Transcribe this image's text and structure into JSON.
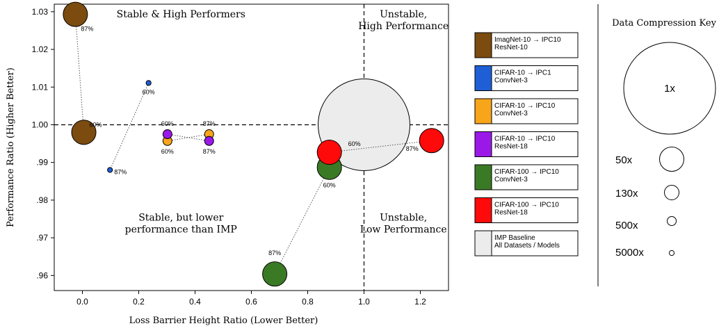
{
  "chart_data": {
    "type": "scatter",
    "xlabel": "Loss Barrier Height Ratio (Lower Better)",
    "ylabel": "Performance Ratio (Higher Better)",
    "xlim": [
      -0.1,
      1.3
    ],
    "ylim": [
      0.956,
      1.032
    ],
    "x_ticks": [
      0.0,
      0.2,
      0.4,
      0.6,
      0.8,
      1.0,
      1.2
    ],
    "x_tick_labels": [
      "0.0",
      "0.2",
      "0.4",
      "0.6",
      "0.8",
      "1.0",
      "1.2"
    ],
    "y_ticks": [
      0.96,
      0.97,
      0.98,
      0.99,
      1.0,
      1.01,
      1.02,
      1.03
    ],
    "y_tick_labels": [
      ".96",
      ".97",
      ".98",
      ".99",
      "1.00",
      "1.01",
      "1.02",
      "1.03"
    ],
    "reference_lines": {
      "x": 1.0,
      "y": 1.0
    },
    "grid": false,
    "quadrant_labels": [
      {
        "text": [
          "Stable & High Performers"
        ],
        "x": 0.35,
        "y": 1.0285
      },
      {
        "text": [
          "Unstable,",
          "High Performance"
        ],
        "x": 1.14,
        "y": 1.0285
      },
      {
        "text": [
          "Stable, but lower",
          "performance than IMP"
        ],
        "x": 0.35,
        "y": 0.9745
      },
      {
        "text": [
          "Unstable,",
          "Low Performance"
        ],
        "x": 1.14,
        "y": 0.9745
      }
    ],
    "series": [
      {
        "name": [
          "ImagNet-10 → IPC10",
          "ResNet-10"
        ],
        "color": "#7b4b0f",
        "points": [
          {
            "x": -0.025,
            "y": 1.0293,
            "compression": "50x",
            "label": "87%"
          },
          {
            "x": 0.005,
            "y": 0.998,
            "compression": "50x",
            "label": "60%"
          }
        ]
      },
      {
        "name": [
          "CIFAR-10 → IPC1",
          "ConvNet-3"
        ],
        "color": "#1f5fd6",
        "points": [
          {
            "x": 0.235,
            "y": 1.0111,
            "compression": "5000x",
            "label": "60%"
          },
          {
            "x": 0.098,
            "y": 0.988,
            "compression": "5000x",
            "label": "87%"
          }
        ]
      },
      {
        "name": [
          "CIFAR-10 → IPC10",
          "ConvNet-3"
        ],
        "color": "#f7a51a",
        "points": [
          {
            "x": 0.45,
            "y": 0.9975,
            "compression": "500x",
            "label": "87%"
          },
          {
            "x": 0.302,
            "y": 0.9957,
            "compression": "500x",
            "label": "60%"
          }
        ]
      },
      {
        "name": [
          "CIFAR-10 → IPC10",
          "ResNet-18"
        ],
        "color": "#9a19e8",
        "points": [
          {
            "x": 0.302,
            "y": 0.9975,
            "compression": "500x",
            "label": "60%"
          },
          {
            "x": 0.45,
            "y": 0.9957,
            "compression": "500x",
            "label": "87%"
          }
        ]
      },
      {
        "name": [
          "CIFAR-100 → IPC10",
          "ConvNet-3"
        ],
        "color": "#3b7a25",
        "points": [
          {
            "x": 0.877,
            "y": 0.9887,
            "compression": "50x",
            "label": "60%"
          },
          {
            "x": 0.683,
            "y": 0.9604,
            "compression": "50x",
            "label": "87%"
          }
        ]
      },
      {
        "name": [
          "CIFAR-100 → IPC10",
          "ResNet-18"
        ],
        "color": "#ff0a0a",
        "points": [
          {
            "x": 0.877,
            "y": 0.9927,
            "compression": "50x",
            "label": "60%"
          },
          {
            "x": 1.24,
            "y": 0.9958,
            "compression": "50x",
            "label": "87%"
          }
        ]
      },
      {
        "name": [
          "IMP Baseline",
          "All Datasets / Models"
        ],
        "color": "#ececec",
        "points": [
          {
            "x": 1.0,
            "y": 1.0,
            "compression": "1x",
            "label": ""
          }
        ]
      }
    ],
    "size_key": {
      "title": "Data Compression Key",
      "entries": [
        "1x",
        "50x",
        "130x",
        "500x",
        "5000x"
      ]
    }
  }
}
